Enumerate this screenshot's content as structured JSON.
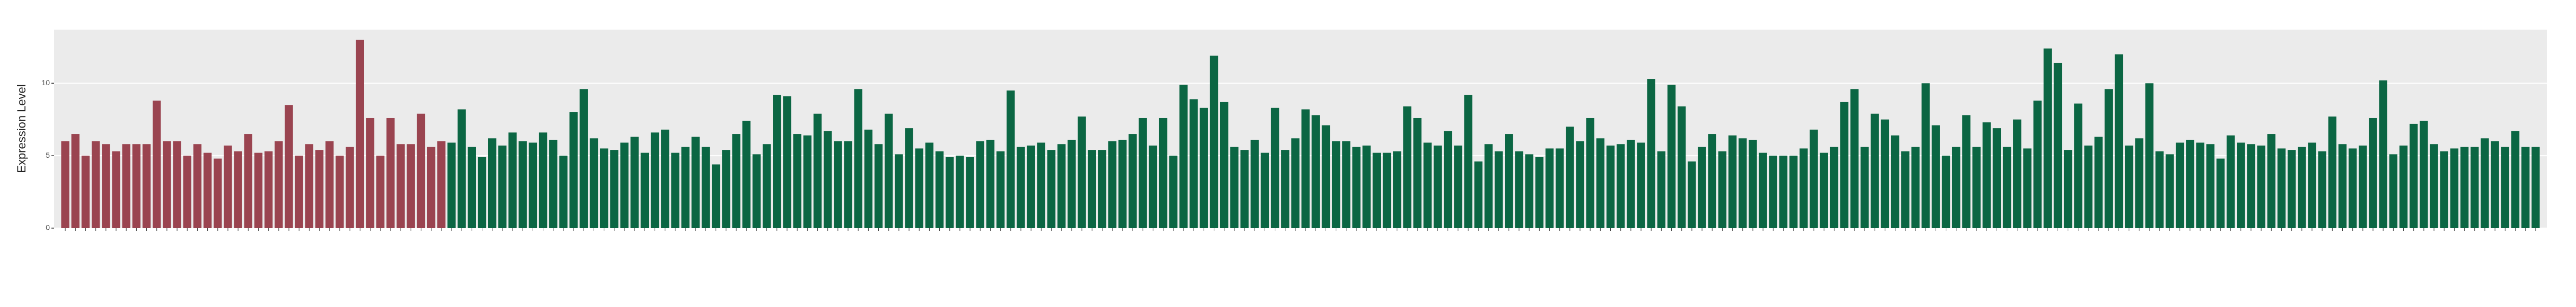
{
  "chart_data": {
    "type": "bar",
    "ylabel": "Expression Level",
    "ylim": [
      0,
      13.7
    ],
    "yticks": [
      0,
      5,
      10
    ],
    "grid": true,
    "series": [
      {
        "color": "#9a4450",
        "values": [
          6,
          6.5,
          5,
          6,
          5.8,
          5.3,
          5.8,
          5.8,
          5.8,
          8.8,
          6,
          6,
          5,
          5.8,
          5.2,
          4.8,
          5.7,
          5.3,
          6.5,
          5.2,
          5.3,
          6,
          8.5,
          5,
          5.8,
          5.4,
          6,
          5,
          5.6,
          13,
          7.6,
          5,
          7.6,
          5.8,
          5.8,
          7.9,
          5.6,
          6
        ]
      },
      {
        "color": "#0b6643",
        "values": [
          5.9,
          8.2,
          5.6,
          4.9,
          6.2,
          5.7,
          6.6,
          6,
          5.9,
          6.6,
          6.1,
          5,
          8,
          9.6,
          6.2,
          5.5,
          5.4,
          5.9,
          6.3,
          5.2,
          6.6,
          6.8,
          5.2,
          5.6,
          6.3,
          5.6,
          4.4,
          5.4,
          6.5,
          7.4,
          5.1,
          5.8,
          9.2,
          9.1,
          6.5,
          6.4,
          7.9,
          6.7,
          6,
          6,
          9.6,
          6.8,
          5.8,
          7.9,
          5.1,
          6.9,
          5.5,
          5.9,
          5.3,
          4.9,
          5,
          4.9,
          6,
          6.1,
          5.3,
          9.5,
          5.6,
          5.7,
          5.9,
          5.4,
          5.8,
          6.1,
          7.7,
          5.4,
          5.4,
          6,
          6.1,
          6.5,
          7.6,
          5.7,
          7.6,
          5,
          9.9,
          8.9,
          8.3,
          11.9,
          8.7,
          5.6,
          5.4,
          6.1,
          5.2,
          8.3,
          5.4,
          6.2,
          8.2,
          7.8,
          7.1,
          6,
          6,
          5.6,
          5.7,
          5.2,
          5.2,
          5.3,
          8.4,
          7.6,
          5.9,
          5.7,
          6.7,
          5.7,
          9.2,
          4.6,
          5.8,
          5.3,
          6.5,
          5.3,
          5.1,
          4.9,
          5.5,
          5.5,
          7,
          6,
          7.6,
          6.2,
          5.7,
          5.8,
          6.1,
          5.9,
          10.3,
          5.3,
          9.9,
          8.4,
          4.6,
          5.6,
          6.5,
          5.3,
          6.4,
          6.2,
          6.1,
          5.2,
          5,
          5,
          5,
          5.5,
          6.8,
          5.2,
          5.6,
          8.7,
          9.6,
          5.6,
          7.9,
          7.5,
          6.4,
          5.3,
          5.6,
          10,
          7.1,
          5,
          5.6,
          7.8,
          5.6,
          7.3,
          6.9,
          5.6,
          7.5,
          5.5,
          8.8,
          12.4,
          11.4,
          5.4,
          8.6,
          5.7,
          6.3,
          9.6,
          12,
          5.7,
          6.2,
          10,
          5.3,
          5.1,
          5.9,
          6.1,
          5.9,
          5.8,
          4.8,
          6.4,
          5.9,
          5.8,
          5.7,
          6.5,
          5.5,
          5.4,
          5.6,
          5.9,
          5.3,
          7.7,
          5.8,
          5.5,
          5.7,
          7.6,
          10.2,
          5.1,
          5.7,
          7.2,
          7.4,
          5.8,
          5.3,
          5.5,
          5.6,
          5.6,
          6.2,
          6,
          5.6,
          6.7,
          5.6,
          5.6
        ]
      }
    ]
  }
}
